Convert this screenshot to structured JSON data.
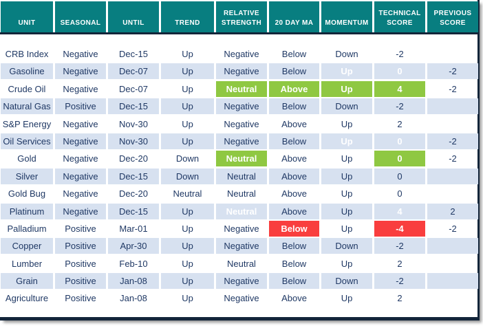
{
  "colors": {
    "header_teal": "#087E80",
    "divider_navy": "#13253A",
    "text_navy": "#1F3864",
    "row_stripe_blue": "#D7E1F0",
    "highlight_green": "#8FC842",
    "highlight_red": "#F93E3E"
  },
  "table": {
    "columns": [
      {
        "key": "unit",
        "label": "UNIT"
      },
      {
        "key": "seasonal",
        "label": "SEASONAL"
      },
      {
        "key": "until",
        "label": "UNTIL"
      },
      {
        "key": "trend",
        "label": "TREND"
      },
      {
        "key": "relative-strength",
        "label": "RELATIVE STRENGTH"
      },
      {
        "key": "20-day-ma",
        "label": "20 DAY MA"
      },
      {
        "key": "momentum",
        "label": "MOMENTUM"
      },
      {
        "key": "technical-score",
        "label": "TECHNICAL SCORE"
      },
      {
        "key": "previous-score",
        "label": "PREVIOUS SCORE"
      }
    ],
    "rows": [
      {
        "cells": [
          "CRB Index",
          "Negative",
          "Dec-15",
          "Up",
          "Negative",
          "Below",
          "Down",
          "-2",
          ""
        ],
        "hl": [
          "",
          "",
          "",
          "",
          "",
          "",
          "",
          "",
          ""
        ]
      },
      {
        "cells": [
          "Gasoline",
          "Negative",
          "Dec-07",
          "Up",
          "Negative",
          "Below",
          "Up",
          "0",
          "-2"
        ],
        "hl": [
          "",
          "",
          "",
          "",
          "",
          "",
          "g",
          "g",
          ""
        ]
      },
      {
        "cells": [
          "Crude Oil",
          "Negative",
          "Dec-07",
          "Up",
          "Neutral",
          "Above",
          "Up",
          "4",
          "-2"
        ],
        "hl": [
          "",
          "",
          "",
          "",
          "g",
          "g",
          "g",
          "g",
          ""
        ]
      },
      {
        "cells": [
          "Natural Gas",
          "Positive",
          "Dec-15",
          "Up",
          "Negative",
          "Below",
          "Down",
          "-2",
          ""
        ],
        "hl": [
          "",
          "",
          "",
          "",
          "",
          "",
          "",
          "",
          ""
        ]
      },
      {
        "cells": [
          "S&P Energy",
          "Negative",
          "Nov-30",
          "Up",
          "Negative",
          "Above",
          "Up",
          "2",
          ""
        ],
        "hl": [
          "",
          "",
          "",
          "",
          "",
          "",
          "",
          "",
          ""
        ]
      },
      {
        "cells": [
          "Oil Services",
          "Negative",
          "Nov-30",
          "Up",
          "Negative",
          "Below",
          "Up",
          "0",
          "-2"
        ],
        "hl": [
          "",
          "",
          "",
          "",
          "",
          "",
          "g",
          "g",
          ""
        ]
      },
      {
        "cells": [
          "Gold",
          "Negative",
          "Dec-20",
          "Down",
          "Neutral",
          "Above",
          "Up",
          "0",
          "-2"
        ],
        "hl": [
          "",
          "",
          "",
          "",
          "g",
          "",
          "",
          "g",
          ""
        ]
      },
      {
        "cells": [
          "Silver",
          "Negative",
          "Dec-15",
          "Down",
          "Neutral",
          "Above",
          "Up",
          "0",
          ""
        ],
        "hl": [
          "",
          "",
          "",
          "",
          "",
          "",
          "",
          "",
          ""
        ]
      },
      {
        "cells": [
          "Gold Bug",
          "Negative",
          "Dec-20",
          "Neutral",
          "Neutral",
          "Above",
          "Up",
          "0",
          ""
        ],
        "hl": [
          "",
          "",
          "",
          "",
          "",
          "",
          "",
          "",
          ""
        ]
      },
      {
        "cells": [
          "Platinum",
          "Negative",
          "Dec-15",
          "Up",
          "Neutral",
          "Above",
          "Up",
          "4",
          "2"
        ],
        "hl": [
          "",
          "",
          "",
          "",
          "g",
          "",
          "",
          "g",
          ""
        ]
      },
      {
        "cells": [
          "Palladium",
          "Positive",
          "Mar-01",
          "Up",
          "Negative",
          "Below",
          "Up",
          "-4",
          "-2"
        ],
        "hl": [
          "",
          "",
          "",
          "",
          "",
          "r",
          "",
          "r",
          ""
        ]
      },
      {
        "cells": [
          "Copper",
          "Positive",
          "Apr-30",
          "Up",
          "Negative",
          "Below",
          "Down",
          "-2",
          ""
        ],
        "hl": [
          "",
          "",
          "",
          "",
          "",
          "",
          "",
          "",
          ""
        ]
      },
      {
        "cells": [
          "Lumber",
          "Positive",
          "Feb-10",
          "Up",
          "Neutral",
          "Below",
          "Up",
          "2",
          ""
        ],
        "hl": [
          "",
          "",
          "",
          "",
          "",
          "",
          "",
          "",
          ""
        ]
      },
      {
        "cells": [
          "Grain",
          "Positive",
          "Jan-08",
          "Up",
          "Negative",
          "Below",
          "Down",
          "-2",
          ""
        ],
        "hl": [
          "",
          "",
          "",
          "",
          "",
          "",
          "",
          "",
          ""
        ]
      },
      {
        "cells": [
          "Agriculture",
          "Positive",
          "Jan-08",
          "Up",
          "Negative",
          "Above",
          "Up",
          "2",
          ""
        ],
        "hl": [
          "",
          "",
          "",
          "",
          "",
          "",
          "",
          "",
          ""
        ]
      }
    ]
  }
}
